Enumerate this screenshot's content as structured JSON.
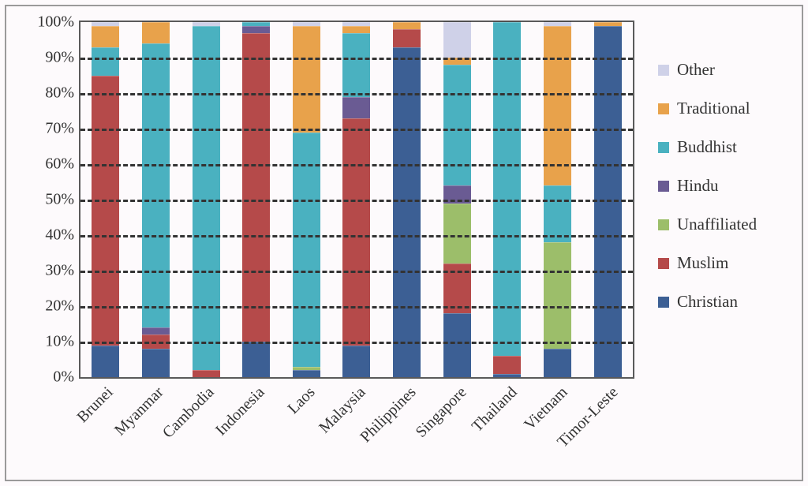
{
  "chart": {
    "type": "stacked-bar-100",
    "background_color": "#fdfafc",
    "grid_color": "#333333",
    "axis_color": "#5a5a5a",
    "font_family": "Georgia, 'Times New Roman', serif",
    "label_fontsize": 20,
    "bar_width_pct": 5.0,
    "ylim": [
      0,
      100
    ],
    "ytick_step": 10,
    "ytick_labels": [
      "0%",
      "10%",
      "20%",
      "30%",
      "40%",
      "50%",
      "60%",
      "70%",
      "80%",
      "90%",
      "100%"
    ],
    "x_label_rotation_deg": -45,
    "series_order": [
      "Christian",
      "Muslim",
      "Unaffiliated",
      "Hindu",
      "Buddhist",
      "Traditional",
      "Other"
    ],
    "colors": {
      "Christian": "#3c5f94",
      "Muslim": "#b54a4a",
      "Unaffiliated": "#9cbe6a",
      "Hindu": "#6a5b93",
      "Buddhist": "#4ab1c0",
      "Traditional": "#e8a24b",
      "Other": "#cfd1e8"
    },
    "legend_order": [
      "Other",
      "Traditional",
      "Buddhist",
      "Hindu",
      "Unaffiliated",
      "Muslim",
      "Christian"
    ],
    "legend_labels": {
      "Other": "Other",
      "Traditional": "Traditional",
      "Buddhist": "Buddhist",
      "Hindu": "Hindu",
      "Unaffiliated": "Unaffiliated",
      "Muslim": "Muslim",
      "Christian": "Christian"
    },
    "categories": [
      "Brunei",
      "Myanmar",
      "Cambodia",
      "Indonesia",
      "Laos",
      "Malaysia",
      "Philippines",
      "Singapore",
      "Thailand",
      "Vietnam",
      "Timor-Leste"
    ],
    "data": {
      "Brunei": {
        "Christian": 9,
        "Muslim": 76,
        "Unaffiliated": 0,
        "Hindu": 0,
        "Buddhist": 8,
        "Traditional": 6,
        "Other": 1
      },
      "Myanmar": {
        "Christian": 8,
        "Muslim": 4,
        "Unaffiliated": 0,
        "Hindu": 2,
        "Buddhist": 80,
        "Traditional": 6,
        "Other": 0
      },
      "Cambodia": {
        "Christian": 0,
        "Muslim": 2,
        "Unaffiliated": 0,
        "Hindu": 0,
        "Buddhist": 97,
        "Traditional": 0,
        "Other": 1
      },
      "Indonesia": {
        "Christian": 10,
        "Muslim": 87,
        "Unaffiliated": 0,
        "Hindu": 2,
        "Buddhist": 1,
        "Traditional": 0,
        "Other": 0
      },
      "Laos": {
        "Christian": 2,
        "Muslim": 0,
        "Unaffiliated": 1,
        "Hindu": 0,
        "Buddhist": 66,
        "Traditional": 30,
        "Other": 1
      },
      "Malaysia": {
        "Christian": 9,
        "Muslim": 64,
        "Unaffiliated": 0,
        "Hindu": 6,
        "Buddhist": 18,
        "Traditional": 2,
        "Other": 1
      },
      "Philippines": {
        "Christian": 93,
        "Muslim": 5,
        "Unaffiliated": 0,
        "Hindu": 0,
        "Buddhist": 0,
        "Traditional": 2,
        "Other": 0
      },
      "Singapore": {
        "Christian": 18,
        "Muslim": 14,
        "Unaffiliated": 17,
        "Hindu": 5,
        "Buddhist": 34,
        "Traditional": 2,
        "Other": 10
      },
      "Thailand": {
        "Christian": 1,
        "Muslim": 5,
        "Unaffiliated": 0,
        "Hindu": 0,
        "Buddhist": 94,
        "Traditional": 0,
        "Other": 0
      },
      "Vietnam": {
        "Christian": 8,
        "Muslim": 0,
        "Unaffiliated": 30,
        "Hindu": 0,
        "Buddhist": 16,
        "Traditional": 45,
        "Other": 1
      },
      "Timor-Leste": {
        "Christian": 99,
        "Muslim": 0,
        "Unaffiliated": 0,
        "Hindu": 0,
        "Buddhist": 0,
        "Traditional": 1,
        "Other": 0
      }
    }
  }
}
